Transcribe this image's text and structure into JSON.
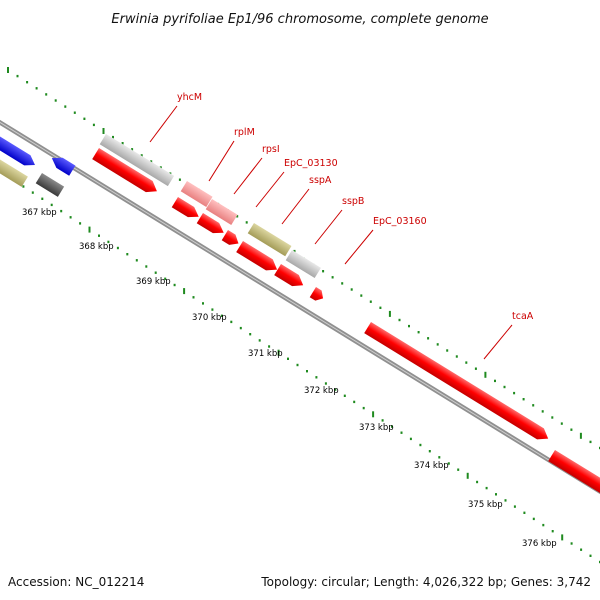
{
  "title": "Erwinia pyrifoliae Ep1/96 chromosome, complete genome",
  "footer": {
    "accession": "Accession: NC_012214",
    "summary": "Topology: circular; Length: 4,026,322 bp; Genes: 3,742"
  },
  "colors": {
    "backbone": "#909090",
    "scale_dots": "#1f8a1f",
    "label": "#cc0000",
    "cds": "#ff0000",
    "rna": "#f08080",
    "pseudo": "#c0c0c0",
    "misc": "#b8b070",
    "other_blue": "#0000ee",
    "other_dark": "#555555"
  },
  "scale": {
    "ticks": [
      "367 kbp",
      "368 kbp",
      "369 kbp",
      "370 kbp",
      "371 kbp",
      "372 kbp",
      "373 kbp",
      "374 kbp",
      "375 kbp",
      "376 kbp"
    ]
  },
  "gene_labels": [
    "yhcM",
    "rplM",
    "rpsI",
    "EpC_03130",
    "sspA",
    "sspB",
    "EpC_03160",
    "tcaA"
  ]
}
